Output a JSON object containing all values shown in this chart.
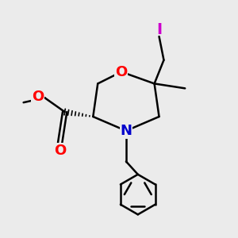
{
  "bg_color": "#ebebeb",
  "ring_color": "#000000",
  "O_color": "#ff0000",
  "N_color": "#0000cc",
  "I_color": "#cc00cc",
  "bond_lw": 1.8,
  "font_size": 13,
  "fig_w": 3.0,
  "fig_h": 3.0,
  "dpi": 100,
  "O_label": "O",
  "N_label": "N",
  "I_label": "I",
  "methoxy_label": "O",
  "carbonyl_label": "O"
}
